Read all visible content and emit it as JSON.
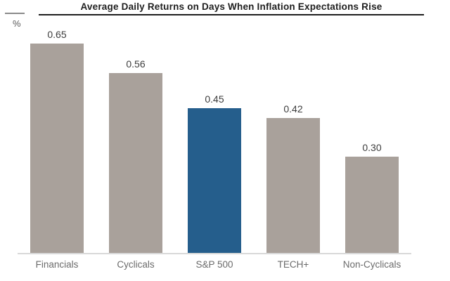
{
  "chart_data": {
    "type": "bar",
    "title": "Average Daily Returns on Days When Inflation Expectations Rise",
    "ylabel": "%",
    "xlabel": "",
    "categories": [
      "Financials",
      "Cyclicals",
      "S&P 500",
      "TECH+",
      "Non-Cyclicals"
    ],
    "values": [
      0.65,
      0.56,
      0.45,
      0.42,
      0.3
    ],
    "value_labels": [
      "0.65",
      "0.56",
      "0.45",
      "0.42",
      "0.30"
    ],
    "bar_colors": [
      "#a9a19b",
      "#a9a19b",
      "#255e8c",
      "#a9a19b",
      "#a9a19b"
    ],
    "highlight_category": "S&P 500",
    "ylim": [
      0,
      0.72
    ],
    "grid": false,
    "legend": "none",
    "value_labels_position": "above-bars",
    "axis_lines": "baseline-only"
  },
  "colors": {
    "bar_default": "#a9a19b",
    "bar_highlight": "#255e8c",
    "baseline": "#d9d9d9",
    "title_text": "#1f1f1f",
    "title_underline": "#1e1e1e",
    "value_label": "#3d3d3d",
    "category_label": "#6b6b6b",
    "axis_label": "#595959",
    "axis_tick": "#8a8a8a",
    "background": "#ffffff"
  }
}
